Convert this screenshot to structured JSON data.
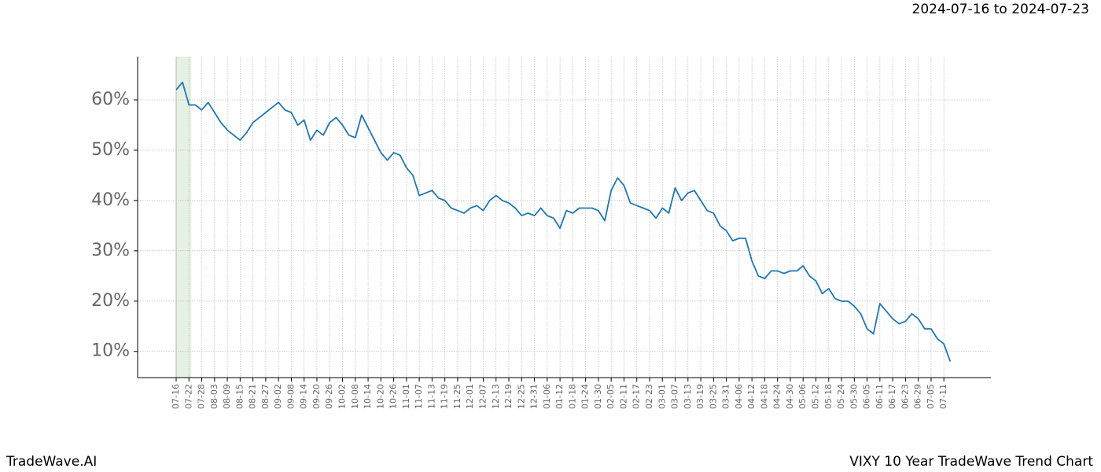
{
  "chart_data": {
    "type": "line",
    "title": "VIXY 10 Year TradeWave Trend Chart",
    "subtitle": "2024-07-16 to 2024-07-23",
    "source": "TradeWave.AI",
    "categories": [
      "07-16",
      null,
      "07-22",
      null,
      "07-28",
      null,
      "08-03",
      null,
      "08-09",
      null,
      "08-15",
      null,
      "08-21",
      null,
      "08-27",
      null,
      "09-02",
      null,
      "09-08",
      null,
      "09-14",
      null,
      "09-20",
      null,
      "09-26",
      null,
      "10-02",
      null,
      "10-08",
      null,
      "10-14",
      null,
      "10-20",
      null,
      "10-26",
      null,
      "11-01",
      null,
      "11-07",
      null,
      "11-13",
      null,
      "11-19",
      null,
      "11-25",
      null,
      "12-01",
      null,
      "12-07",
      null,
      "12-13",
      null,
      "12-19",
      null,
      "12-25",
      null,
      "12-31",
      null,
      "01-06",
      null,
      "01-12",
      null,
      "01-18",
      null,
      "01-24",
      null,
      "01-30",
      null,
      "02-05",
      null,
      "02-11",
      null,
      "02-17",
      null,
      "02-23",
      null,
      "03-01",
      null,
      "03-07",
      null,
      "03-13",
      null,
      "03-19",
      null,
      "03-25",
      null,
      "03-31",
      null,
      "04-06",
      null,
      "04-12",
      null,
      "04-18",
      null,
      "04-24",
      null,
      "04-30",
      null,
      "05-06",
      null,
      "05-12",
      null,
      "05-18",
      null,
      "05-24",
      null,
      "05-30",
      null,
      "06-05",
      null,
      "06-11",
      null,
      "06-17",
      null,
      "06-23",
      null,
      "06-29",
      null,
      "07-05",
      null,
      "07-11",
      null
    ],
    "values": [
      62,
      63.5,
      59,
      59,
      58,
      59.5,
      57.5,
      55.5,
      54,
      53,
      52,
      53.5,
      55.5,
      56.5,
      57.5,
      58.5,
      59.5,
      58,
      57.5,
      55,
      56,
      52,
      54,
      53,
      55.5,
      56.5,
      55,
      53,
      52.5,
      57,
      54.5,
      52,
      49.5,
      48,
      49.5,
      49,
      46.5,
      45,
      41,
      41.5,
      42,
      40.5,
      40,
      38.5,
      38,
      37.5,
      38.5,
      39,
      38,
      40,
      41,
      40,
      39.5,
      38.5,
      37,
      37.5,
      37,
      38.5,
      37,
      36.5,
      34.5,
      38,
      37.5,
      38.5,
      38.5,
      38.5,
      38,
      36,
      42,
      44.5,
      43,
      39.5,
      39,
      38.5,
      38,
      36.5,
      38.5,
      37.5,
      42.5,
      40,
      41.5,
      42,
      40,
      38,
      37.5,
      35,
      34,
      32,
      32.5,
      32.5,
      28,
      25,
      24.5,
      26,
      26,
      25.5,
      26,
      26,
      27,
      25,
      24,
      21.5,
      22.5,
      20.5,
      20,
      20,
      19,
      17.5,
      14.5,
      13.5,
      19.5,
      18,
      16.5,
      15.5,
      16,
      17.5,
      16.5,
      14.5,
      14.5,
      12.5,
      11.5,
      8
    ],
    "color": "#1f77b4",
    "highlight": [
      "07-16",
      "07-22"
    ],
    "highlight_color": "#e6f0e3",
    "ylim": [
      4.8,
      68.6
    ],
    "yticks": [
      {
        "value": 10,
        "label": "10%"
      },
      {
        "value": 20,
        "label": "20%"
      },
      {
        "value": 30,
        "label": "30%"
      },
      {
        "value": 40,
        "label": "40%"
      },
      {
        "value": 50,
        "label": "50%"
      },
      {
        "value": 60,
        "label": "60%"
      }
    ],
    "grid": true
  }
}
